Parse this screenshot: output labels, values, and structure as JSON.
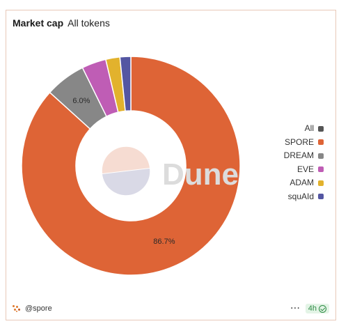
{
  "header": {
    "title": "Market cap",
    "subtitle": "All tokens"
  },
  "watermark": "Dune",
  "footer": {
    "author": "@spore",
    "more": "···",
    "refresh": "4h"
  },
  "colors": {
    "SPORE": "#de6436",
    "DREAM": "#878787",
    "EVE": "#bf5db5",
    "ADAM": "#e2b22d",
    "squAId": "#5456a2",
    "All": "#555555"
  },
  "chart_data": {
    "type": "pie",
    "donut": true,
    "start_at_top": true,
    "direction": "clockwise",
    "legend_position": "right",
    "legend": [
      "All",
      "SPORE",
      "DREAM",
      "EVE",
      "ADAM",
      "squAId"
    ],
    "slices": [
      {
        "name": "SPORE",
        "value": 86.7,
        "label": "86.7%"
      },
      {
        "name": "DREAM",
        "value": 6.0,
        "label": "6.0%"
      },
      {
        "name": "EVE",
        "value": 3.6,
        "label": ""
      },
      {
        "name": "ADAM",
        "value": 2.1,
        "label": ""
      },
      {
        "name": "squAId",
        "value": 1.6,
        "label": ""
      }
    ]
  }
}
